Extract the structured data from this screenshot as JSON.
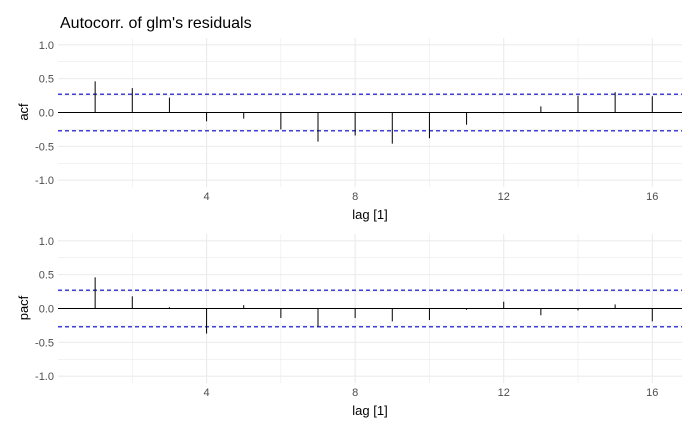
{
  "title": "Autocorr. of glm's residuals",
  "chart_data": [
    {
      "type": "bar",
      "ylabel": "acf",
      "xlabel": "lag [1]",
      "xlim": [
        0,
        16.8
      ],
      "ylim": [
        -1.1,
        1.1
      ],
      "x_ticks": [
        4,
        8,
        12,
        16
      ],
      "y_ticks": [
        1.0,
        0.5,
        0.0,
        -0.5,
        -1.0
      ],
      "y_tick_labels": [
        "1.0",
        "0.5",
        "0.0",
        "-0.5",
        "-1.0"
      ],
      "confidence_bound": 0.27,
      "grid": true,
      "series": [
        {
          "x": [
            1,
            2,
            3,
            4,
            5,
            6,
            7,
            8,
            9,
            10,
            11,
            12,
            13,
            14,
            15,
            16
          ],
          "values": [
            0.46,
            0.36,
            0.22,
            -0.13,
            -0.09,
            -0.25,
            -0.43,
            -0.34,
            -0.46,
            -0.38,
            -0.18,
            -0.01,
            0.09,
            0.25,
            0.3,
            0.24
          ]
        }
      ],
      "colors": {
        "bar": "#000000",
        "bound": "#0000cc",
        "grid": "#ebebeb"
      }
    },
    {
      "type": "bar",
      "ylabel": "pacf",
      "xlabel": "lag [1]",
      "xlim": [
        0,
        16.8
      ],
      "ylim": [
        -1.1,
        1.1
      ],
      "x_ticks": [
        4,
        8,
        12,
        16
      ],
      "y_ticks": [
        1.0,
        0.5,
        0.0,
        -0.5,
        -1.0
      ],
      "y_tick_labels": [
        "1.0",
        "0.5",
        "0.0",
        "-0.5",
        "-1.0"
      ],
      "confidence_bound": 0.27,
      "grid": true,
      "series": [
        {
          "x": [
            1,
            2,
            3,
            4,
            5,
            6,
            7,
            8,
            9,
            10,
            11,
            12,
            13,
            14,
            15,
            16
          ],
          "values": [
            0.46,
            0.18,
            0.02,
            -0.37,
            0.05,
            -0.14,
            -0.27,
            -0.14,
            -0.19,
            -0.17,
            -0.02,
            0.1,
            -0.1,
            -0.03,
            0.06,
            -0.19
          ]
        }
      ],
      "colors": {
        "bar": "#000000",
        "bound": "#0000cc",
        "grid": "#ebebeb"
      }
    }
  ]
}
